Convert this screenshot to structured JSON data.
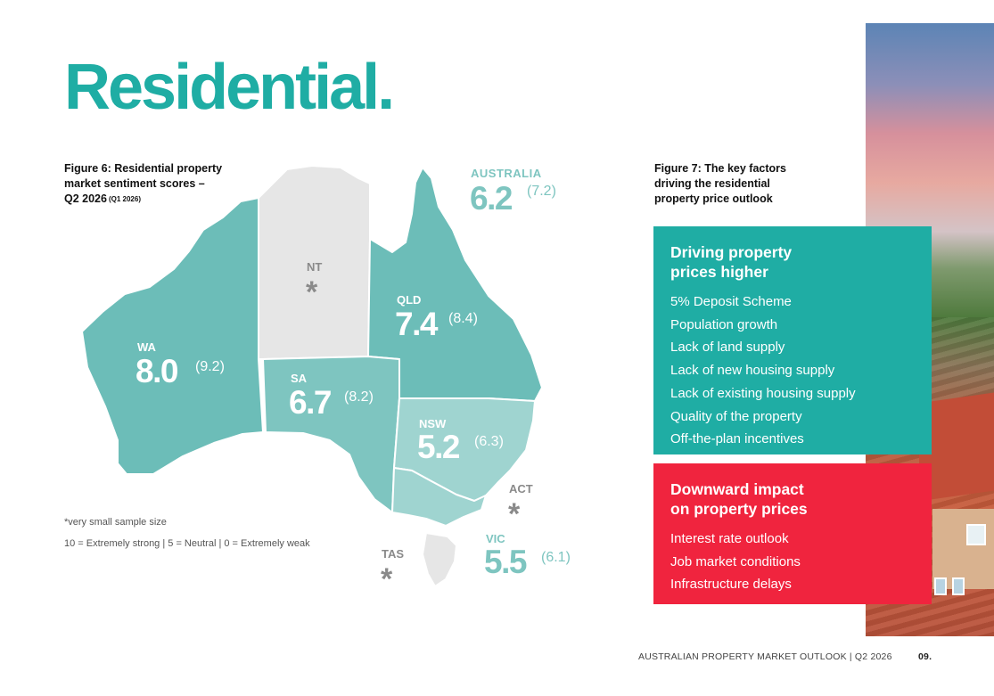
{
  "page": {
    "title": "Residential.",
    "footer_title": "AUSTRALIAN PROPERTY MARKET OUTLOOK | Q2 2026",
    "page_number": "09."
  },
  "figure6": {
    "caption_line1": "Figure 6: Residential property",
    "caption_line2": "market sentiment scores –",
    "caption_line3": "Q2 2026",
    "caption_prev": "(Q1 2026)",
    "note_sample": "*very small sample size",
    "note_scale": "10 = Extremely strong | 5 = Neutral | 0 = Extremely weak"
  },
  "map_data": {
    "national": {
      "label": "AUSTRALIA",
      "score": "6.2",
      "previous": "(7.2)"
    },
    "regions": [
      {
        "id": "wa",
        "label": "WA",
        "score": "8.0",
        "previous": "(9.2)"
      },
      {
        "id": "nt",
        "label": "NT",
        "score": "*",
        "previous": ""
      },
      {
        "id": "qld",
        "label": "QLD",
        "score": "7.4",
        "previous": "(8.4)"
      },
      {
        "id": "sa",
        "label": "SA",
        "score": "6.7",
        "previous": "(8.2)"
      },
      {
        "id": "nsw",
        "label": "NSW",
        "score": "5.2",
        "previous": "(6.3)"
      },
      {
        "id": "act",
        "label": "ACT",
        "score": "*",
        "previous": ""
      },
      {
        "id": "vic",
        "label": "VIC",
        "score": "5.5",
        "previous": "(6.1)"
      },
      {
        "id": "tas",
        "label": "TAS",
        "score": "*",
        "previous": ""
      }
    ],
    "colors": {
      "high": "#6cbdb8",
      "mid": "#7ec5c0",
      "low": "#9fd4d0",
      "no_data": "#e6e6e6",
      "accent": "#1fada4"
    }
  },
  "figure7": {
    "caption_line1": "Figure 7: The key factors",
    "caption_line2": "driving the residential",
    "caption_line3": "property price outlook",
    "higher": {
      "heading_line1": "Driving property",
      "heading_line2": "prices higher",
      "items": [
        "5% Deposit Scheme",
        "Population growth",
        "Lack of land supply",
        "Lack of new housing supply",
        "Lack of existing housing supply",
        "Quality of the property",
        "Off-the-plan incentives"
      ],
      "color": "#1fada4"
    },
    "lower": {
      "heading_line1": "Downward impact",
      "heading_line2": "on property prices",
      "items": [
        "Interest rate outlook",
        "Job market conditions",
        "Infrastructure delays"
      ],
      "color": "#f0243e"
    }
  }
}
